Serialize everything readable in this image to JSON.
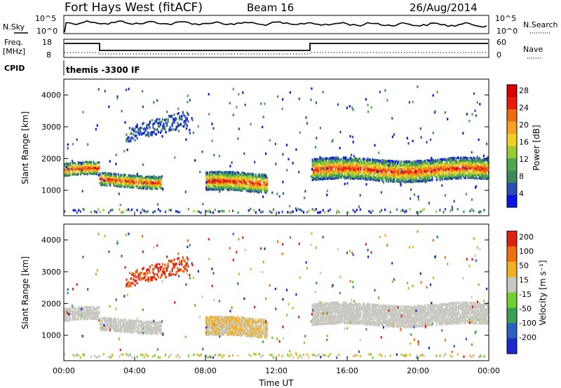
{
  "header": {
    "station": "Fort Hays West (fitACF)",
    "beam": "Beam 16",
    "date": "26/Aug/2014"
  },
  "top_panels": {
    "nsky_label": "N.Sky",
    "nsky_ticks": [
      "10^5",
      "10^0"
    ],
    "nsearch_ticks": [
      "10^5",
      "10^0"
    ],
    "nsearch_label": "N.Search",
    "freq_label": "Freq.",
    "freq_unit": "[MHz]",
    "freq_ticks": [
      "18",
      "8"
    ],
    "nave_ticks": [
      "60",
      "0"
    ],
    "nave_label": "Nave",
    "cpid_label": "CPID",
    "cpid_text": "themis -3300 IF"
  },
  "chart_data": [
    {
      "type": "heatmap",
      "name": "power",
      "ylabel": "Slant Range [km]",
      "yticks": [
        "1000",
        "2000",
        "3000",
        "4000"
      ],
      "ylim": [
        200,
        4500
      ],
      "colorbar_label": "Power [dB]",
      "colorbar_ticks": [
        "4",
        "8",
        "12",
        "16",
        "20",
        "24",
        "28"
      ],
      "colorbar_colors": [
        "#0a14e6",
        "#2a4fb0",
        "#3b8a5a",
        "#4ca84c",
        "#9acd32",
        "#f0d020",
        "#f4a020",
        "#f06a10",
        "#e81a0a",
        "#dd0000"
      ],
      "echo_bands_hours_km": [
        {
          "t0": 0.0,
          "t1": 2.0,
          "center": 1650,
          "width": 180
        },
        {
          "t0": 2.0,
          "t1": 5.5,
          "center": 1300,
          "width": 160
        },
        {
          "t0": 8.0,
          "t1": 11.5,
          "center": 1250,
          "width": 280
        },
        {
          "t0": 14.0,
          "t1": 24.0,
          "center": 1650,
          "width": 300
        }
      ]
    },
    {
      "type": "heatmap",
      "name": "velocity",
      "ylabel": "Slant Range [km]",
      "yticks": [
        "1000",
        "2000",
        "3000",
        "4000"
      ],
      "ylim": [
        200,
        4500
      ],
      "colorbar_label": "Velocity [m s⁻¹]",
      "colorbar_ticks": [
        "200",
        "100",
        "50",
        "15",
        "-15",
        "-50",
        "-100",
        "-200"
      ],
      "colorbar_colors": [
        "#1a2ad0",
        "#2a60c0",
        "#3aa050",
        "#70d030",
        "#c8c8c0",
        "#f0b020",
        "#f07010",
        "#e02010"
      ],
      "xlabel": "Time UT",
      "xticks": [
        "00:00",
        "04:00",
        "08:00",
        "12:00",
        "16:00",
        "20:00",
        "00:00"
      ],
      "xlim_hours": [
        0,
        24
      ]
    }
  ]
}
